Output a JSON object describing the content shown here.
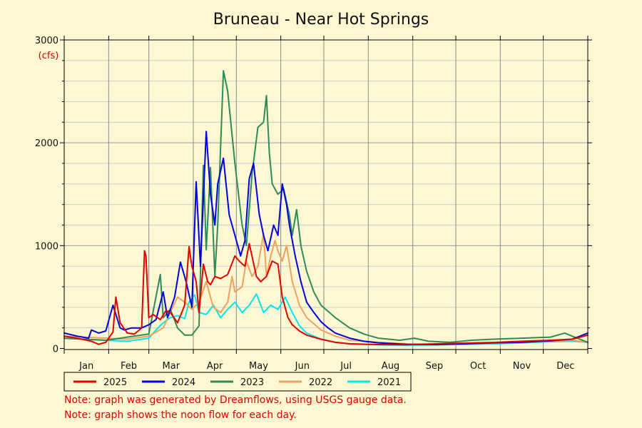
{
  "chart_data": {
    "type": "line",
    "title": "Bruneau - Near Hot Springs",
    "ylabel": "(cfs)",
    "xlabel": "",
    "ylim": [
      0,
      3000
    ],
    "y_ticks": [
      "0",
      "1000",
      "2000",
      "3000"
    ],
    "y_tick_values": [
      0,
      1000,
      2000,
      3000
    ],
    "xlim": [
      1,
      366
    ],
    "x_tick_labels": [
      "Jan",
      "Feb",
      "Mar",
      "Apr",
      "May",
      "Jun",
      "Jul",
      "Aug",
      "Sep",
      "Oct",
      "Nov",
      "Dec"
    ],
    "x_unit": "day of year",
    "grid": true,
    "legend_position": "bottom",
    "series": [
      {
        "name": "2025",
        "color": "#e00000",
        "x": [
          1,
          10,
          20,
          25,
          30,
          35,
          37,
          40,
          45,
          50,
          55,
          57,
          58,
          60,
          63,
          68,
          72,
          75,
          80,
          85,
          88,
          90,
          93,
          95,
          98,
          101,
          103,
          106,
          110,
          115,
          120,
          123,
          127,
          130,
          135,
          138,
          142,
          146,
          150,
          153,
          157,
          160,
          165,
          170,
          180,
          190,
          200,
          220,
          240,
          260,
          280,
          300,
          320,
          340,
          355,
          366
        ],
        "y": [
          120,
          100,
          70,
          40,
          60,
          160,
          500,
          250,
          150,
          140,
          200,
          950,
          900,
          300,
          330,
          280,
          370,
          350,
          250,
          420,
          990,
          800,
          650,
          350,
          820,
          650,
          620,
          700,
          680,
          720,
          900,
          850,
          800,
          1020,
          700,
          650,
          700,
          850,
          820,
          500,
          300,
          230,
          170,
          130,
          90,
          60,
          45,
          38,
          36,
          45,
          52,
          58,
          70,
          80,
          90,
          130
        ]
      },
      {
        "name": "2024",
        "color": "#0000dd",
        "x": [
          1,
          10,
          18,
          20,
          25,
          30,
          35,
          40,
          43,
          48,
          55,
          60,
          65,
          70,
          73,
          78,
          82,
          86,
          90,
          93,
          96,
          100,
          103,
          106,
          108,
          112,
          116,
          120,
          124,
          127,
          130,
          133,
          137,
          140,
          143,
          147,
          150,
          153,
          156,
          158,
          162,
          166,
          170,
          175,
          180,
          185,
          190,
          200,
          210,
          220,
          240,
          260,
          280,
          300,
          320,
          340,
          355,
          366
        ],
        "y": [
          150,
          120,
          100,
          180,
          150,
          170,
          420,
          200,
          180,
          200,
          200,
          230,
          280,
          550,
          300,
          500,
          840,
          650,
          400,
          1620,
          800,
          2110,
          1500,
          1200,
          1600,
          1850,
          1300,
          1100,
          900,
          1050,
          1650,
          1800,
          1300,
          1100,
          950,
          1200,
          1100,
          1600,
          1400,
          1200,
          900,
          650,
          450,
          350,
          260,
          200,
          150,
          100,
          70,
          55,
          40,
          38,
          45,
          55,
          60,
          75,
          90,
          150
        ]
      },
      {
        "name": "2023",
        "color": "#2e8b57",
        "x": [
          1,
          15,
          30,
          45,
          60,
          68,
          70,
          75,
          80,
          85,
          90,
          95,
          98,
          100,
          103,
          106,
          108,
          112,
          115,
          120,
          125,
          128,
          132,
          136,
          140,
          142,
          144,
          146,
          150,
          154,
          158,
          160,
          163,
          166,
          170,
          175,
          180,
          190,
          200,
          210,
          220,
          235,
          245,
          255,
          270,
          285,
          300,
          320,
          340,
          350,
          355,
          366
        ],
        "y": [
          100,
          90,
          80,
          110,
          140,
          720,
          300,
          380,
          200,
          130,
          130,
          220,
          1780,
          960,
          1760,
          700,
          1200,
          2700,
          2500,
          1800,
          1200,
          1000,
          1700,
          2150,
          2200,
          2460,
          1900,
          1600,
          1500,
          1550,
          1300,
          1100,
          1350,
          1000,
          750,
          550,
          420,
          300,
          200,
          140,
          100,
          80,
          100,
          70,
          60,
          80,
          90,
          100,
          110,
          150,
          120,
          60
        ]
      },
      {
        "name": "2022",
        "color": "#f0a060",
        "x": [
          1,
          15,
          30,
          45,
          60,
          70,
          75,
          80,
          85,
          90,
          95,
          100,
          105,
          110,
          115,
          118,
          120,
          125,
          128,
          132,
          136,
          140,
          142,
          145,
          148,
          150,
          153,
          156,
          160,
          165,
          170,
          180,
          190,
          200,
          220,
          240,
          260,
          280,
          300,
          320,
          340,
          355,
          366
        ],
        "y": [
          120,
          110,
          100,
          90,
          120,
          200,
          350,
          500,
          450,
          380,
          450,
          650,
          400,
          350,
          450,
          700,
          550,
          600,
          850,
          700,
          800,
          1120,
          700,
          900,
          1050,
          950,
          850,
          1000,
          650,
          420,
          300,
          180,
          120,
          80,
          60,
          45,
          40,
          45,
          50,
          60,
          70,
          80,
          60
        ]
      },
      {
        "name": "2021",
        "color": "#00e5ee",
        "x": [
          1,
          15,
          30,
          45,
          60,
          65,
          70,
          75,
          80,
          85,
          88,
          92,
          95,
          100,
          105,
          110,
          115,
          120,
          125,
          130,
          135,
          140,
          145,
          150,
          155,
          158,
          160,
          165,
          170,
          180,
          190,
          200,
          220,
          240,
          260,
          280,
          300,
          320,
          340,
          355,
          366
        ],
        "y": [
          100,
          90,
          80,
          70,
          100,
          180,
          250,
          300,
          320,
          290,
          450,
          520,
          350,
          330,
          420,
          300,
          380,
          450,
          350,
          420,
          530,
          350,
          420,
          380,
          500,
          410,
          350,
          220,
          150,
          90,
          60,
          45,
          35,
          32,
          35,
          40,
          45,
          55,
          65,
          70,
          60
        ]
      }
    ]
  },
  "notes": [
    "Note: graph was generated by Dreamflows, using USGS gauge data.",
    "Note: graph shows the noon flow for each day."
  ]
}
